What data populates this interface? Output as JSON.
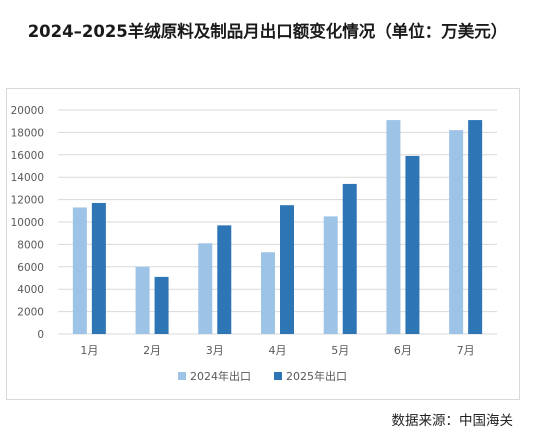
{
  "title": "2024–2025羊绒原料及制品月出口额变化情况（单位：万美元）",
  "source": "数据来源：中国海关",
  "colors": {
    "series_2024": "#9dc3e6",
    "series_2025": "#2e75b6",
    "grid": "#d9d9d9",
    "axis_text": "#595959"
  },
  "chart_data": {
    "type": "bar",
    "title": "2024–2025羊绒原料及制品月出口额变化情况（单位：万美元）",
    "xlabel": "",
    "ylabel": "",
    "categories": [
      "1月",
      "2月",
      "3月",
      "4月",
      "5月",
      "6月",
      "7月"
    ],
    "series": [
      {
        "name": "2024年出口",
        "values": [
          11300,
          6000,
          8100,
          7300,
          10500,
          19100,
          18200
        ]
      },
      {
        "name": "2025年出口",
        "values": [
          11700,
          5100,
          9700,
          11500,
          13400,
          15900,
          19100
        ]
      }
    ],
    "ylim": [
      0,
      20000
    ],
    "yticks": [
      0,
      2000,
      4000,
      6000,
      8000,
      10000,
      12000,
      14000,
      16000,
      18000,
      20000
    ],
    "grid": true,
    "legend": "bottom"
  }
}
